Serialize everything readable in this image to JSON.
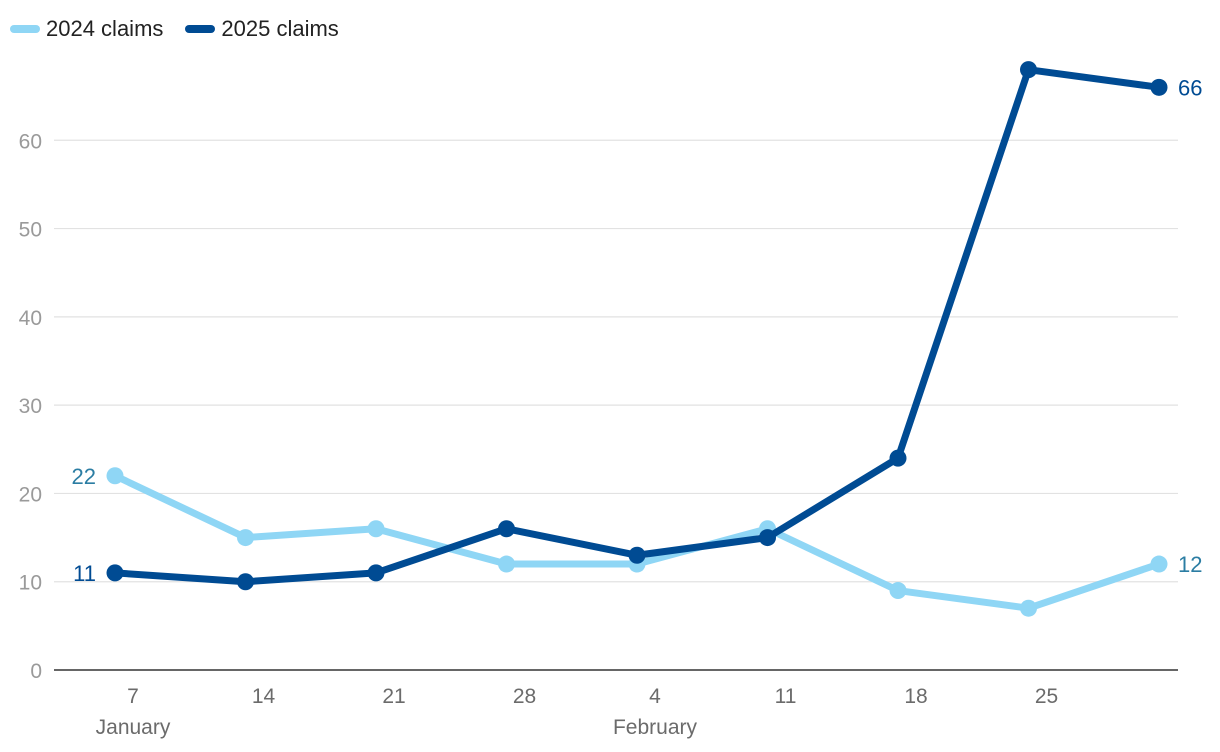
{
  "chart_data": {
    "type": "line",
    "title": "",
    "xlabel": "",
    "ylabel": "",
    "ylim": [
      0,
      70
    ],
    "yticks": [
      0,
      10,
      20,
      30,
      40,
      50,
      60
    ],
    "categories": [
      "7",
      "14",
      "21",
      "28",
      "4",
      "11",
      "18",
      "25",
      ""
    ],
    "month_labels": [
      {
        "label": "January",
        "at_index": 0
      },
      {
        "label": "February",
        "at_index": 4
      }
    ],
    "legend_position": "top-left",
    "grid": true,
    "series": [
      {
        "name": "2024 claims",
        "color": "#8fd6f5",
        "label_color": "#2b7da3",
        "values": [
          22,
          15,
          16,
          12,
          12,
          16,
          9,
          7,
          12
        ],
        "end_labels": {
          "first": "22",
          "last": "12"
        }
      },
      {
        "name": "2025 claims",
        "color": "#004b93",
        "label_color": "#004b93",
        "values": [
          11,
          10,
          11,
          16,
          13,
          15,
          24,
          68,
          66
        ],
        "end_labels": {
          "first": "11",
          "last": "66"
        }
      }
    ]
  }
}
